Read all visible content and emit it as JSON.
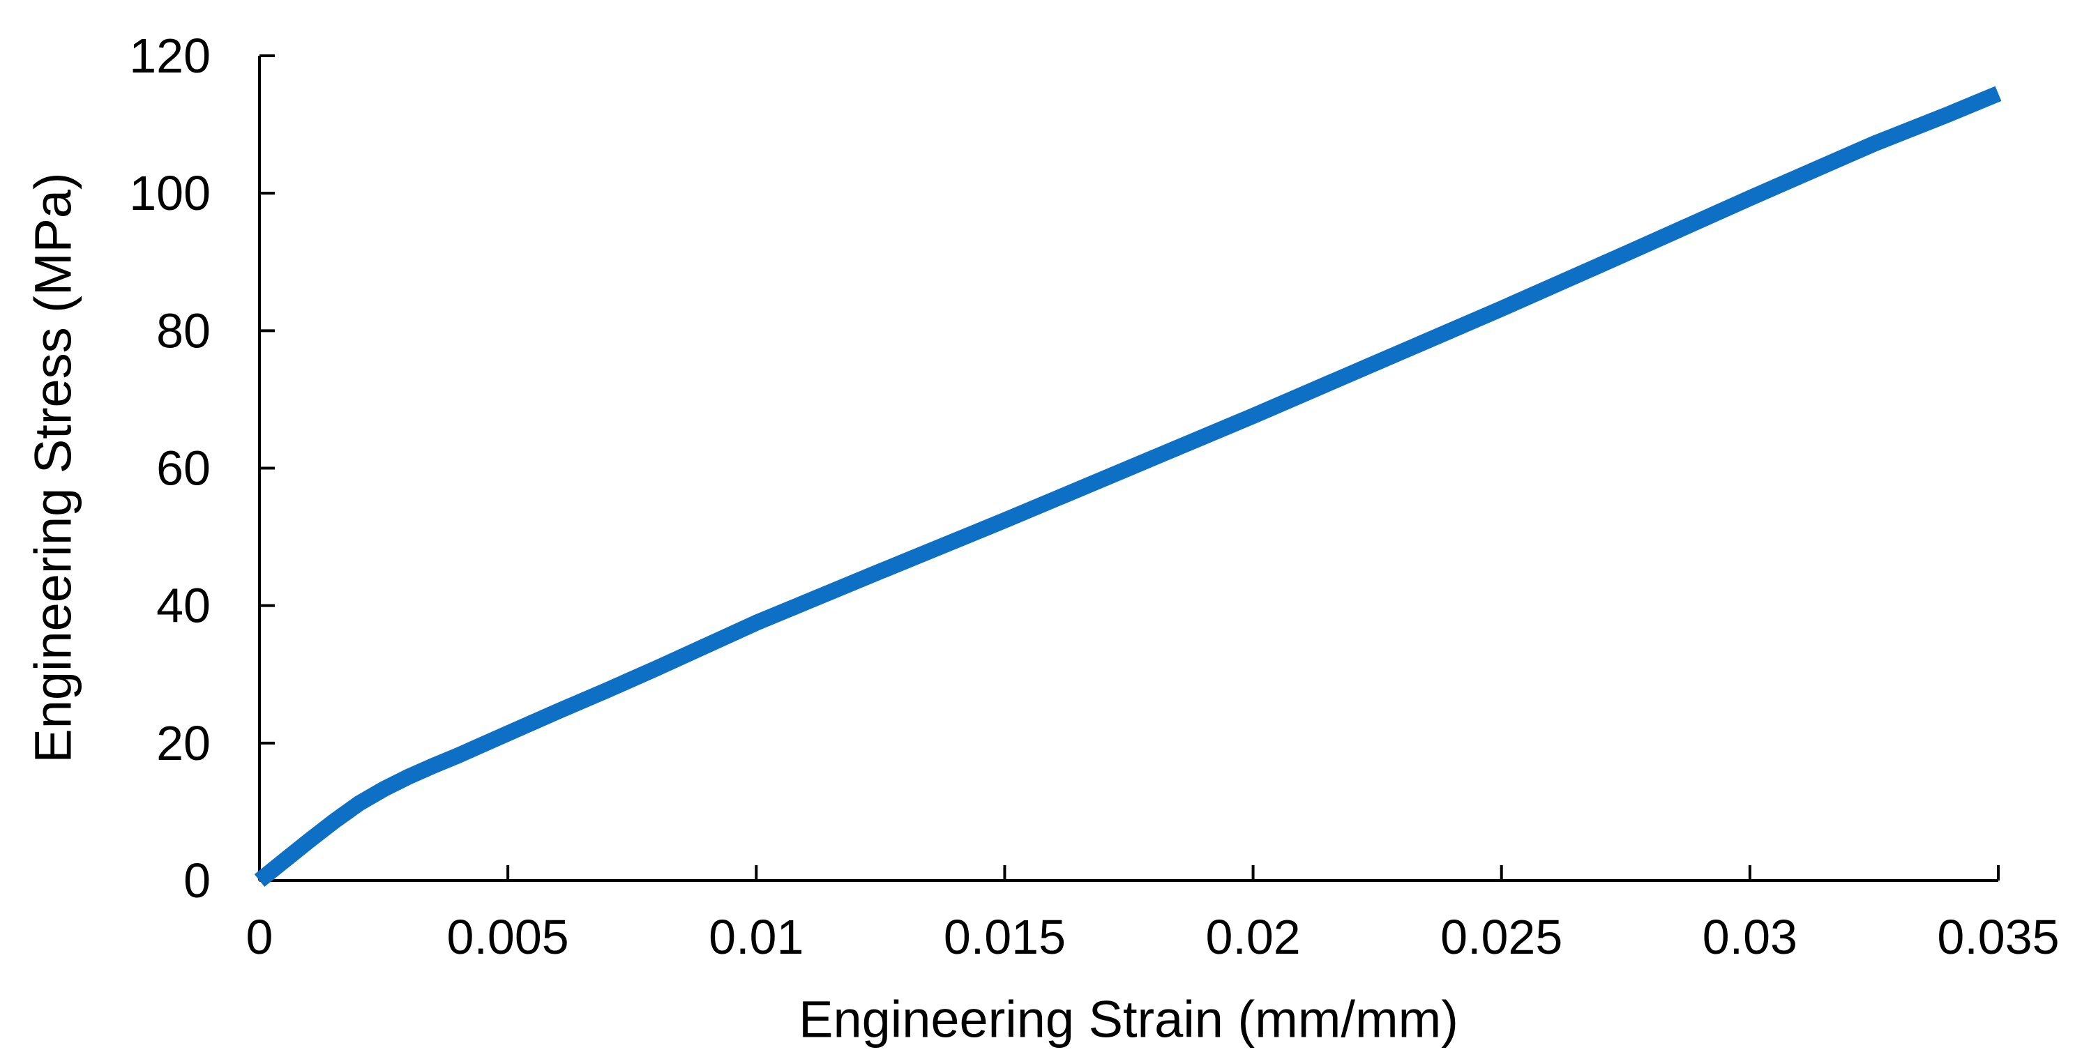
{
  "chart_data": {
    "type": "line",
    "title": "",
    "xlabel": "Engineering Strain (mm/mm)",
    "ylabel": "Engineering Stress (MPa)",
    "xlim": [
      0,
      0.035
    ],
    "ylim": [
      0,
      120
    ],
    "x_ticks": [
      "0",
      "0.005",
      "0.01",
      "0.015",
      "0.02",
      "0.025",
      "0.03",
      "0.035"
    ],
    "y_ticks": [
      "0",
      "20",
      "40",
      "60",
      "80",
      "100",
      "120"
    ],
    "grid": false,
    "legend_position": "none",
    "series": [
      {
        "name": "engineering-stress-strain-curve",
        "color": "#0D70C4",
        "points": [
          [
            0,
            0
          ],
          [
            0.0005,
            2.9
          ],
          [
            0.001,
            5.8
          ],
          [
            0.0015,
            8.6
          ],
          [
            0.002,
            11.2
          ],
          [
            0.0025,
            13.3
          ],
          [
            0.003,
            15.1
          ],
          [
            0.0035,
            16.7
          ],
          [
            0.004,
            18.2
          ],
          [
            0.0045,
            19.8
          ],
          [
            0.005,
            21.4
          ],
          [
            0.006,
            24.6
          ],
          [
            0.007,
            27.7
          ],
          [
            0.008,
            30.9
          ],
          [
            0.009,
            34.2
          ],
          [
            0.01,
            37.5
          ],
          [
            0.0125,
            45.0
          ],
          [
            0.015,
            52.4
          ],
          [
            0.0175,
            60.0
          ],
          [
            0.02,
            67.6
          ],
          [
            0.0225,
            75.4
          ],
          [
            0.025,
            83.2
          ],
          [
            0.0275,
            91.2
          ],
          [
            0.03,
            99.3
          ],
          [
            0.0325,
            107.2
          ],
          [
            0.034,
            111.5
          ],
          [
            0.035,
            114.5
          ]
        ]
      }
    ]
  },
  "colors": {
    "background": "#FFFFFF",
    "axis": "#000000",
    "text": "#000000",
    "line": "#0D70C4"
  }
}
